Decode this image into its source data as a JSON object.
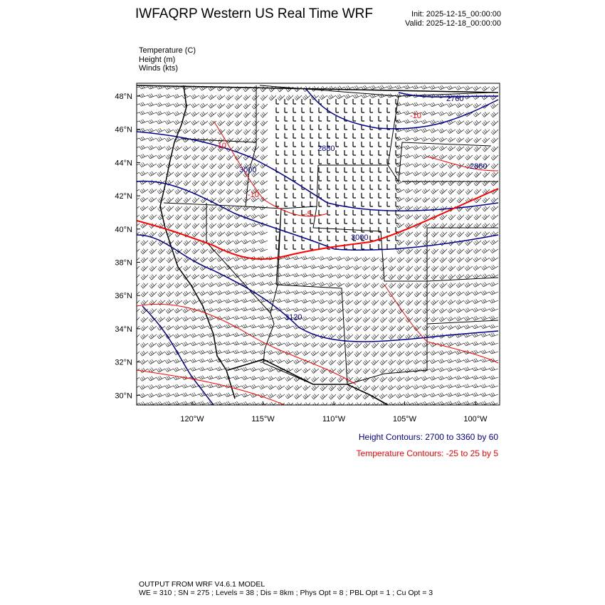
{
  "title": "IWFAQRP Western US Real Time WRF",
  "init": "Init: 2025-12-15_00:00:00",
  "valid": "Valid: 2025-12-18_00:00:00",
  "fields": [
    "Temperature   (C)",
    "Height   (m)",
    "Winds   (kts)"
  ],
  "map": {
    "lat_ticks": [
      "48°N",
      "46°N",
      "44°N",
      "42°N",
      "40°N",
      "38°N",
      "36°N",
      "34°N",
      "32°N",
      "30°N"
    ],
    "lon_ticks": [
      "120°W",
      "115°W",
      "110°W",
      "105°W",
      "100°W"
    ],
    "height_labels": [
      "2760",
      "2880",
      "2880",
      "3000",
      "3000",
      "3120"
    ],
    "temp_labels": [
      "-10",
      "-10",
      "-10",
      "-5"
    ],
    "colors": {
      "height": "#00008b",
      "temperature": "#ff0000",
      "borders": "#000000",
      "barbs": "#000000"
    }
  },
  "legend": {
    "height": "Height Contours: 2700 to 3360 by 60",
    "temperature": "Temperature Contours: -25 to 25 by 5"
  },
  "footer": {
    "line1": "OUTPUT FROM WRF V4.6.1 MODEL",
    "line2": "WE = 310 ; SN = 275 ; Levels = 38 ; Dis = 8km ; Phys Opt = 8 ; PBL Opt = 1 ; Cu Opt = 3"
  }
}
